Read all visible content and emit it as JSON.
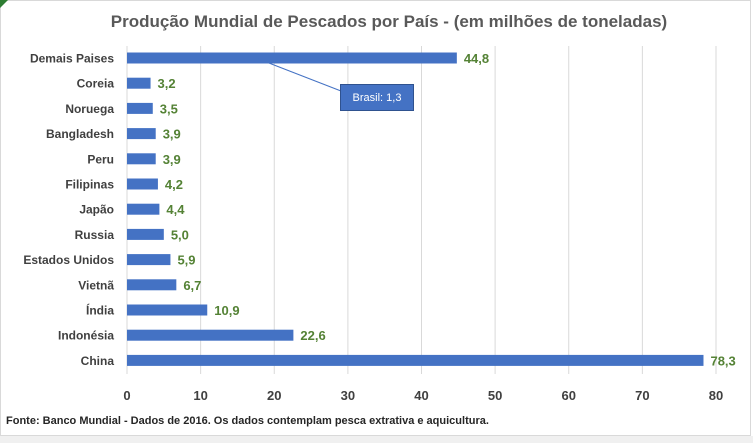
{
  "chart_data": {
    "type": "bar",
    "orientation": "horizontal",
    "title": "Produção Mundial de Pescados por País - (em milhões de toneladas)",
    "categories": [
      "Demais Paises",
      "Coreia",
      "Noruega",
      "Bangladesh",
      "Peru",
      "Filipinas",
      "Japão",
      "Russia",
      "Estados Unidos",
      "Vietnã",
      "Índia",
      "Indonésia",
      "China"
    ],
    "values": [
      44.8,
      3.2,
      3.5,
      3.9,
      3.9,
      4.2,
      4.4,
      5.0,
      5.9,
      6.7,
      10.9,
      22.6,
      78.3
    ],
    "value_labels": [
      "44,8",
      "3,2",
      "3,5",
      "3,9",
      "3,9",
      "4,2",
      "4,4",
      "5,0",
      "5,9",
      "6,7",
      "10,9",
      "22,6",
      "78,3"
    ],
    "xlim": [
      0,
      80
    ],
    "xticks": [
      0,
      10,
      20,
      30,
      40,
      50,
      60,
      70,
      80
    ],
    "grid": true,
    "bar_color": "#4472c4",
    "label_color": "#548235",
    "annotation": {
      "text": "Brasil: 1,3",
      "target_category": "Demais Paises"
    }
  },
  "footer": "Fonte: Banco Mundial - Dados de 2016. Os dados contemplam pesca extrativa e aquicultura."
}
